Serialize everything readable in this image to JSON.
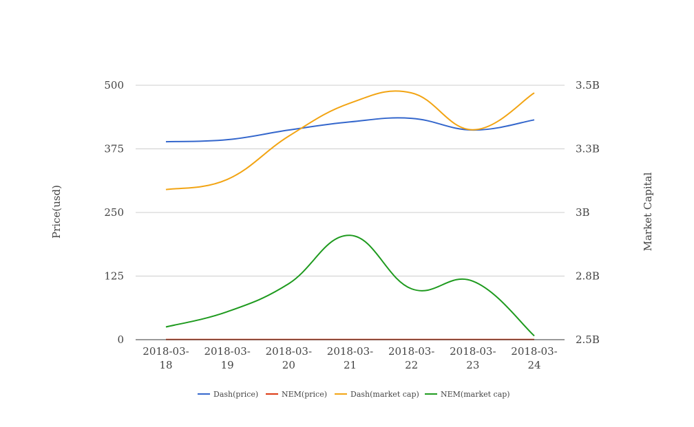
{
  "chart_data": {
    "type": "line",
    "x": [
      "2018-03-18",
      "2018-03-19",
      "2018-03-20",
      "2018-03-21",
      "2018-03-22",
      "2018-03-23",
      "2018-03-24"
    ],
    "x_tick_labels": [
      [
        "2018-03-",
        "18"
      ],
      [
        "2018-03-",
        "19"
      ],
      [
        "2018-03-",
        "20"
      ],
      [
        "2018-03-",
        "21"
      ],
      [
        "2018-03-",
        "22"
      ],
      [
        "2018-03-",
        "23"
      ],
      [
        "2018-03-",
        "24"
      ]
    ],
    "ylabel": "Price(usd)",
    "y2label": "Market Capital",
    "ylim": [
      0,
      500
    ],
    "y_ticks": [
      0,
      125,
      250,
      375,
      500
    ],
    "y_tick_labels": [
      "0",
      "125",
      "250",
      "375",
      "500"
    ],
    "y2lim": [
      2500000000,
      3500000000
    ],
    "y2_ticks": [
      2500000000,
      2750000000,
      3000000000,
      3250000000,
      3500000000
    ],
    "y2_tick_labels": [
      "2.5B",
      "2.8B",
      "3B",
      "3.3B",
      "3.5B"
    ],
    "grid": true,
    "legend_position": "bottom",
    "series": [
      {
        "name": "Dash(price)",
        "axis": "left",
        "color": "#3366cc",
        "values": [
          389,
          393,
          412,
          428,
          435,
          412,
          432
        ]
      },
      {
        "name": "NEM(price)",
        "axis": "right",
        "color": "#dc3912",
        "values": [
          0.3,
          0.31,
          0.33,
          0.35,
          0.35,
          0.33,
          0.32
        ]
      },
      {
        "name": "Dash(market cap)",
        "axis": "right",
        "color": "#f2a413",
        "values": [
          3090000000,
          3130000000,
          3300000000,
          3430000000,
          3470000000,
          3325000000,
          3470000000
        ]
      },
      {
        "name": "NEM(market cap)",
        "axis": "right",
        "color": "#1e9a1e",
        "values": [
          2550000000,
          2610000000,
          2720000000,
          2910000000,
          2700000000,
          2730000000,
          2515000000
        ]
      }
    ]
  }
}
